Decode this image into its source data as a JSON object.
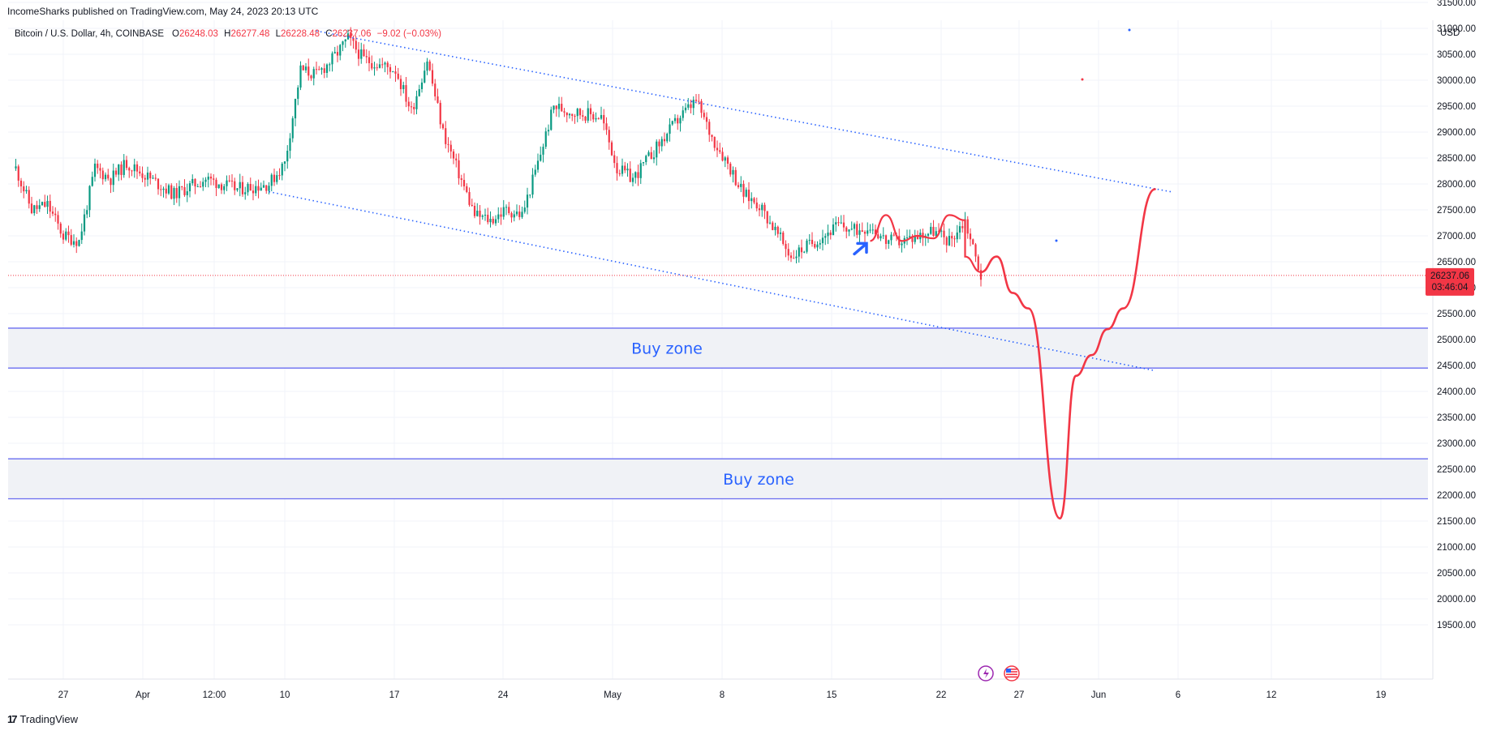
{
  "publish_line": "IncomeSharks published on TradingView.com, May 24, 2023 20:13 UTC",
  "brand": {
    "logo_text": "17",
    "name": "TradingView"
  },
  "legend": {
    "symbol": "Bitcoin / U.S. Dollar, 4h, COINBASE",
    "open_label": "O",
    "open": "26248.03",
    "high_label": "H",
    "high": "26277.48",
    "low_label": "L",
    "low": "26228.48",
    "close_label": "C",
    "close": "26237.06",
    "change": "−9.02 (−0.03%)"
  },
  "price_badge": {
    "price": "26237.06",
    "countdown": "03:46:04",
    "color": "#f23645"
  },
  "colors": {
    "up": "#089981",
    "down": "#f23645",
    "annotation_blue": "#2962ff",
    "projection_red": "#f23645",
    "zone_line": "#6a6df0",
    "zone_fill": "#f0f2f6"
  },
  "chart_data": {
    "type": "candlestick",
    "title": "Bitcoin / U.S. Dollar, 4h, COINBASE",
    "y_axis": {
      "unit_label": "USD",
      "ticks": [
        19500,
        20000,
        20500,
        21000,
        21500,
        22000,
        22500,
        23000,
        23500,
        24000,
        24500,
        25000,
        25500,
        26000,
        26500,
        27000,
        27500,
        28000,
        28500,
        29000,
        29500,
        30000,
        30500,
        31000,
        31500
      ],
      "range": [
        19200,
        31800
      ],
      "position": "right"
    },
    "x_axis": {
      "ticks": [
        "27",
        "Apr",
        "12:00",
        "10",
        "17",
        "24",
        "May",
        "8",
        "15",
        "22",
        "27",
        "Jun",
        "6",
        "12",
        "19"
      ]
    },
    "grid": true,
    "current_price": 26237.06,
    "price_path": [
      [
        "Mar 24",
        28300
      ],
      [
        "Mar 25",
        27500
      ],
      [
        "Mar 26",
        27600
      ],
      [
        "Mar 27",
        27000
      ],
      [
        "Mar 28",
        26900
      ],
      [
        "Mar 29",
        28300
      ],
      [
        "Mar 30",
        28100
      ],
      [
        "Mar 31",
        28400
      ],
      [
        "Apr 2",
        28000
      ],
      [
        "Apr 3",
        27800
      ],
      [
        "Apr 5",
        28100
      ],
      [
        "Apr 7",
        27900
      ],
      [
        "Apr 9",
        28000
      ],
      [
        "Apr 10",
        28400
      ],
      [
        "Apr 11",
        30200
      ],
      [
        "Apr 12",
        30100
      ],
      [
        "Apr 13",
        30400
      ],
      [
        "Apr 14",
        30800
      ],
      [
        "Apr 15",
        30400
      ],
      [
        "Apr 17",
        30200
      ],
      [
        "Apr 18",
        29400
      ],
      [
        "Apr 19",
        30400
      ],
      [
        "Apr 20",
        29000
      ],
      [
        "Apr 21",
        28200
      ],
      [
        "Apr 22",
        27400
      ],
      [
        "Apr 23",
        27300
      ],
      [
        "Apr 24",
        27500
      ],
      [
        "Apr 25",
        27400
      ],
      [
        "Apr 26",
        28400
      ],
      [
        "Apr 27",
        29500
      ],
      [
        "Apr 28",
        29400
      ],
      [
        "Apr 30",
        29300
      ],
      [
        "May 1",
        28300
      ],
      [
        "May 2",
        28100
      ],
      [
        "May 3",
        28500
      ],
      [
        "May 5",
        29300
      ],
      [
        "May 6",
        29600
      ],
      [
        "May 7",
        28900
      ],
      [
        "May 8",
        28400
      ],
      [
        "May 9",
        27800
      ],
      [
        "May 10",
        27600
      ],
      [
        "May 11",
        27100
      ],
      [
        "May 12",
        26600
      ],
      [
        "May 13",
        26800
      ],
      [
        "May 15",
        27200
      ],
      [
        "May 16",
        27100
      ],
      [
        "May 17",
        27200
      ],
      [
        "May 18",
        26900
      ],
      [
        "May 19",
        26900
      ],
      [
        "May 21",
        27100
      ],
      [
        "May 22",
        26900
      ],
      [
        "May 23",
        27300
      ],
      [
        "May 24",
        26237
      ]
    ],
    "projection": [
      [
        "May 24",
        26300
      ],
      [
        "May 25",
        26600
      ],
      [
        "May 26",
        25900
      ],
      [
        "May 27",
        25600
      ],
      [
        "May 29",
        21550
      ],
      [
        "May 30",
        24300
      ],
      [
        "May 31",
        24700
      ],
      [
        "Jun 1",
        25200
      ],
      [
        "Jun 2",
        25600
      ],
      [
        "Jun 4",
        27900
      ]
    ],
    "channel": {
      "upper": [
        [
          "Apr 12",
          30950
        ],
        [
          "Jun 5",
          27850
        ]
      ],
      "lower": [
        [
          "Apr 9",
          27850
        ],
        [
          "Jun 4",
          24400
        ]
      ]
    },
    "zones": [
      {
        "label": "Buy zone",
        "top": 25220,
        "bottom": 24450
      },
      {
        "label": "Buy zone",
        "top": 22700,
        "bottom": 21930
      }
    ]
  }
}
